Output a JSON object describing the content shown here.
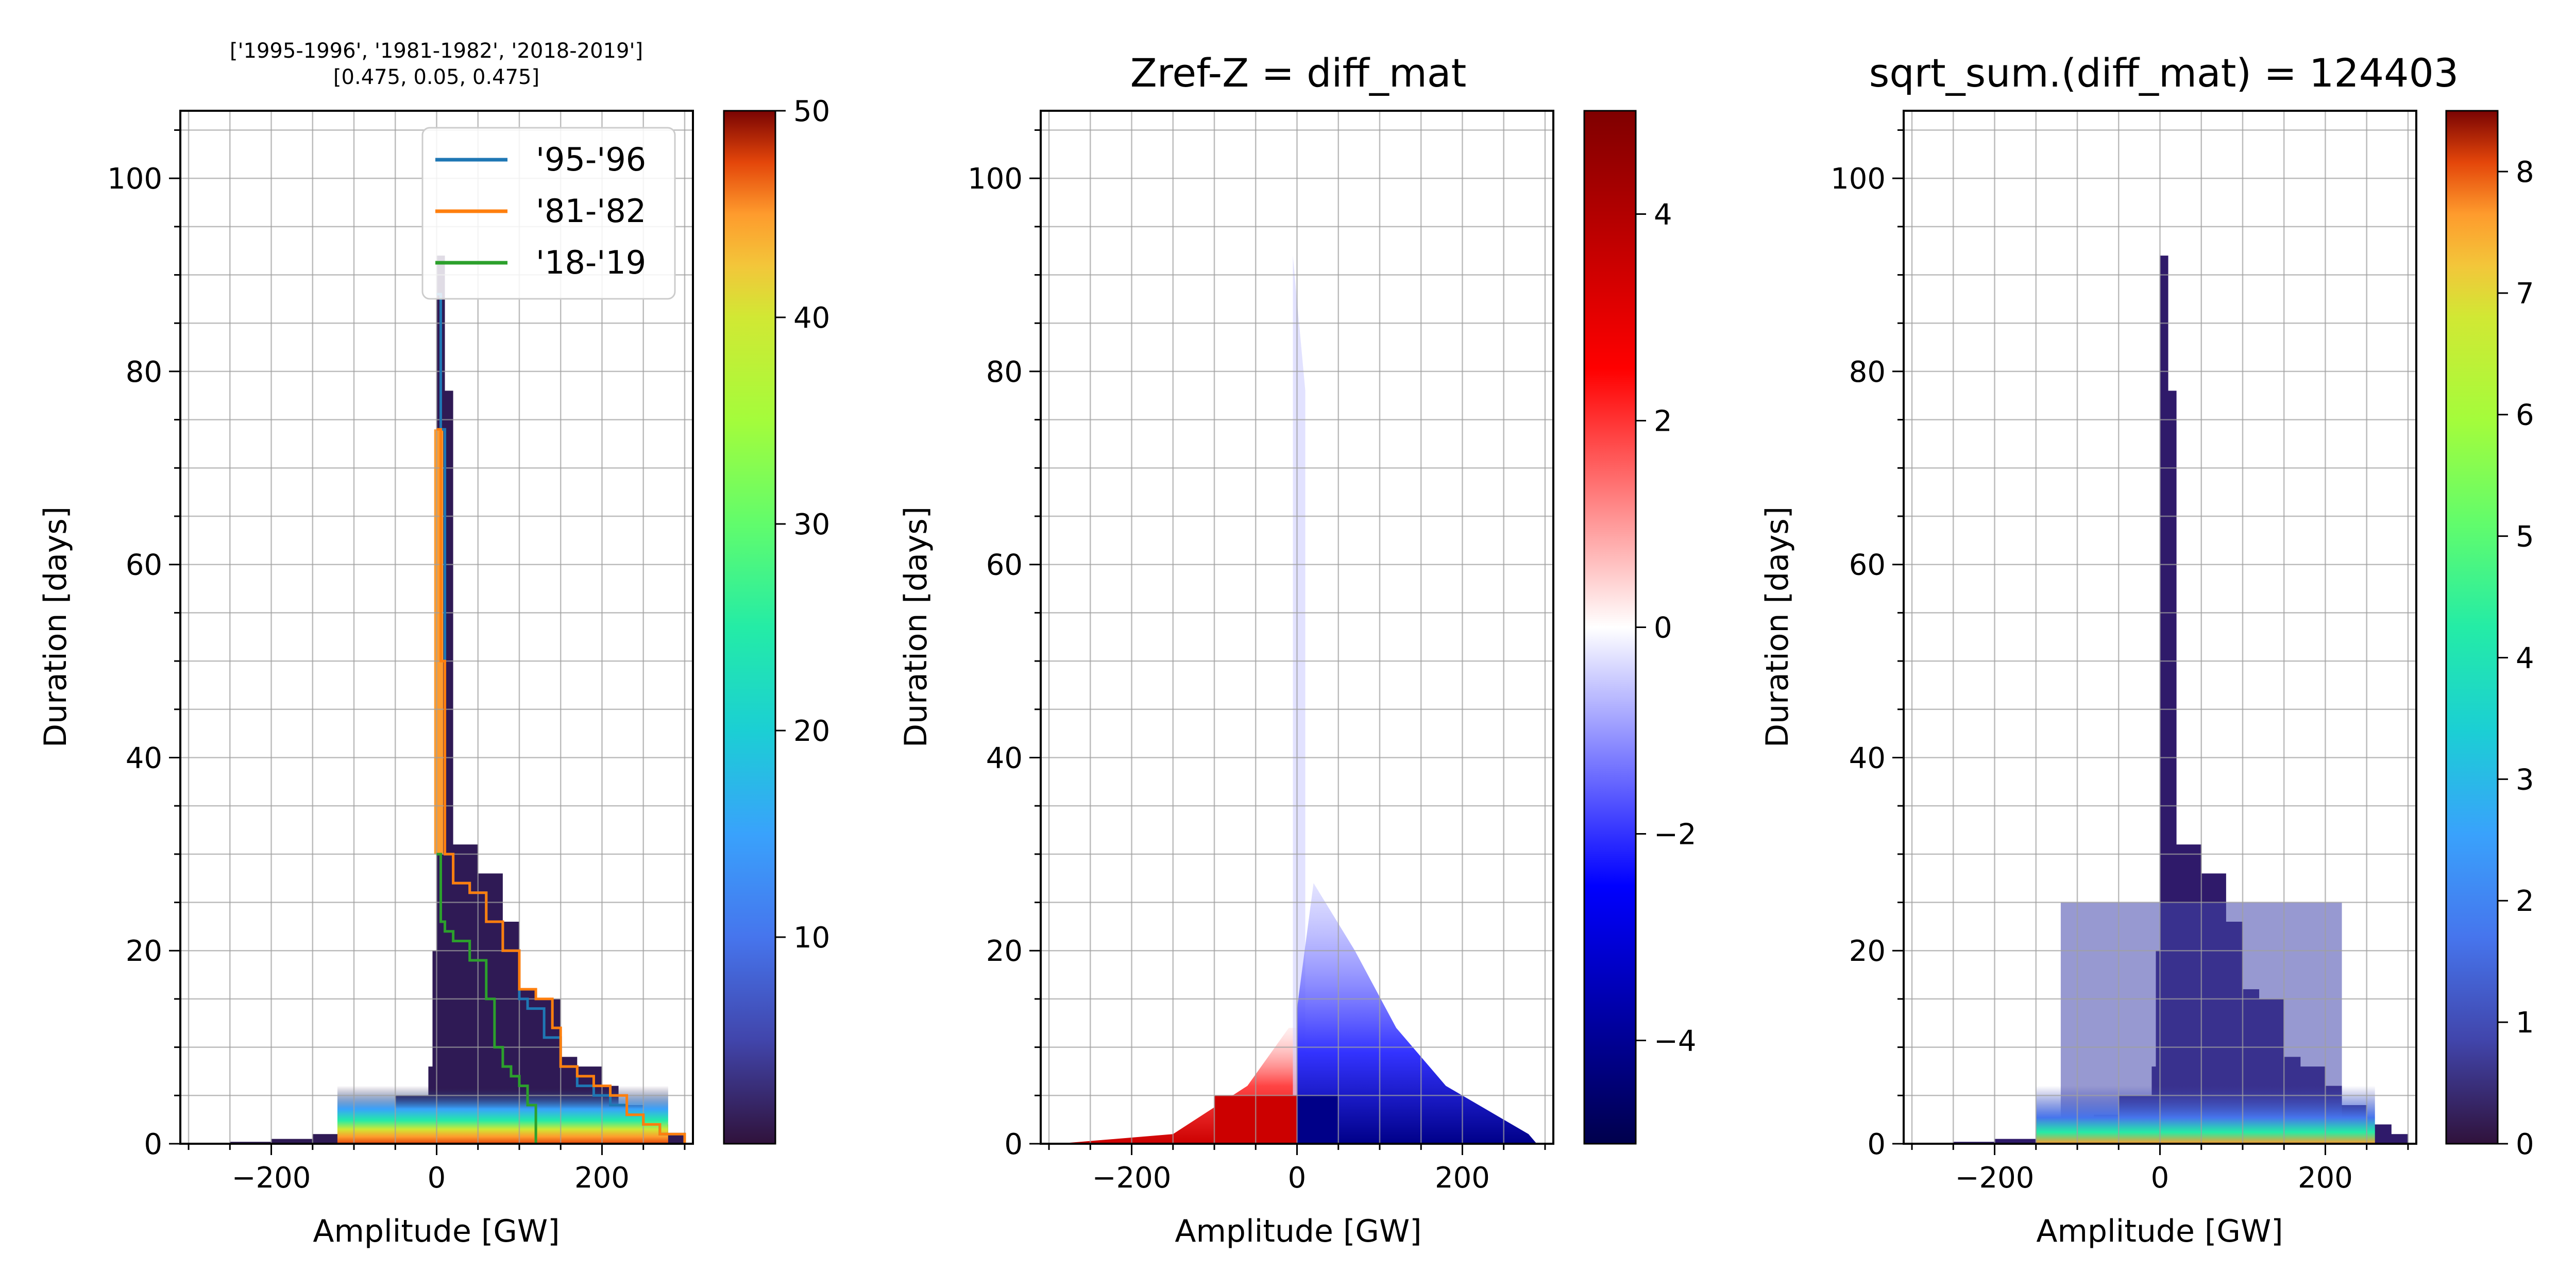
{
  "figure": {
    "background": "#ffffff",
    "grid_color": "#a0a0a0"
  },
  "chart_data": [
    {
      "type": "heatmap",
      "title": "['1995-1996', '1981-1982', '2018-2019']",
      "subtitle": "[0.475, 0.05, 0.475]",
      "xlabel": "Amplitude [GW]",
      "ylabel": "Duration [days]",
      "xlim": [
        -310,
        310
      ],
      "ylim": [
        0,
        107
      ],
      "xticks": [
        -200,
        0,
        200
      ],
      "yticks": [
        0,
        20,
        40,
        60,
        80,
        100
      ],
      "grid": true,
      "colormap": "turbo",
      "colorbar": {
        "min": 0,
        "max": 50,
        "ticks": [
          10,
          20,
          30,
          40,
          50
        ]
      },
      "legend": {
        "position": "upper right",
        "entries": [
          {
            "label": "'95-'96",
            "color": "#1f77b4"
          },
          {
            "label": "'81-'82",
            "color": "#ff7f0e"
          },
          {
            "label": "'18-'19",
            "color": "#2ca02c"
          }
        ]
      },
      "envelope": {
        "x": [
          -290,
          -250,
          -200,
          -150,
          -100,
          -80,
          -50,
          -10,
          -5,
          0,
          10,
          20,
          50,
          80,
          100,
          120,
          150,
          170,
          200,
          220,
          250,
          280,
          300
        ],
        "y": [
          0,
          0.2,
          0.5,
          1,
          2,
          3,
          5,
          8,
          20,
          92,
          78,
          31,
          28,
          23,
          16,
          15,
          9,
          8,
          6,
          4,
          2,
          1,
          0
        ]
      },
      "series": [
        {
          "name": "'95-'96",
          "x": [
            0,
            5,
            10,
            20,
            40,
            60,
            80,
            100,
            110,
            130,
            150,
            170,
            190,
            210,
            230,
            250,
            270,
            300
          ],
          "y": [
            88,
            74,
            30,
            27,
            26,
            23,
            20,
            15,
            14,
            11,
            8,
            6,
            5,
            4,
            3,
            2,
            1,
            0
          ]
        },
        {
          "name": "'81-'82",
          "x": [
            0,
            5,
            10,
            20,
            40,
            60,
            80,
            100,
            120,
            140,
            150,
            170,
            190,
            210,
            230,
            250,
            270,
            300
          ],
          "y": [
            74,
            50,
            30,
            27,
            26,
            23,
            20,
            16,
            15,
            12,
            8,
            7,
            6,
            5,
            3,
            2,
            1,
            0
          ]
        },
        {
          "name": "'18-'19",
          "x": [
            0,
            5,
            10,
            20,
            40,
            60,
            70,
            80,
            90,
            100,
            110,
            120
          ],
          "y": [
            30,
            23,
            22,
            21,
            19,
            15,
            10,
            8,
            7,
            6,
            4,
            0
          ]
        }
      ]
    },
    {
      "type": "heatmap",
      "title": "Zref-Z = diff_mat",
      "xlabel": "Amplitude [GW]",
      "ylabel": "Duration [days]",
      "xlim": [
        -310,
        310
      ],
      "ylim": [
        0,
        107
      ],
      "xticks": [
        -200,
        0,
        200
      ],
      "yticks": [
        0,
        20,
        40,
        60,
        80,
        100
      ],
      "grid": true,
      "colormap": "seismic",
      "colorbar": {
        "min": -5,
        "max": 5,
        "ticks": [
          -4,
          -2,
          0,
          2,
          4
        ],
        "tick_labels": [
          "−4",
          "−2",
          "0",
          "2",
          "4"
        ]
      }
    },
    {
      "type": "heatmap",
      "title": "sqrt_sum.(diff_mat) = 124403",
      "xlabel": "Amplitude [GW]",
      "ylabel": "Duration [days]",
      "xlim": [
        -310,
        310
      ],
      "ylim": [
        0,
        107
      ],
      "xticks": [
        -200,
        0,
        200
      ],
      "yticks": [
        0,
        20,
        40,
        60,
        80,
        100
      ],
      "grid": true,
      "colormap": "turbo",
      "colorbar": {
        "min": 0,
        "max": 8.5,
        "ticks": [
          0,
          1,
          2,
          3,
          4,
          5,
          6,
          7,
          8
        ]
      }
    }
  ]
}
